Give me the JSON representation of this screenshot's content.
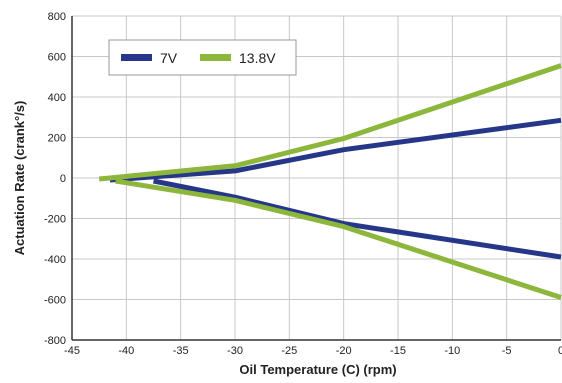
{
  "chart_data": {
    "type": "line",
    "title": "",
    "xlabel": "Oil Temperature (C) (rpm)",
    "ylabel": "Actuation Rate (crank°/s)",
    "xlim": [
      -45,
      0
    ],
    "ylim": [
      -800,
      800
    ],
    "x_ticks": [
      "-45",
      "-40",
      "-35",
      "-30",
      "-25",
      "-20",
      "-15",
      "-10",
      "-5",
      "0"
    ],
    "y_ticks": [
      "-800",
      "-600",
      "-400",
      "-200",
      "0",
      "200",
      "400",
      "600",
      "800"
    ],
    "grid": true,
    "legend_position": "top-left",
    "series": [
      {
        "name": "7V",
        "color": "#263689",
        "segments": [
          [
            [
              -41.5,
              -10
            ],
            [
              -30,
              35
            ],
            [
              -20,
              140
            ],
            [
              0,
              285
            ]
          ],
          [
            [
              -37.5,
              -15
            ],
            [
              -30,
              -95
            ],
            [
              -20,
              -225
            ],
            [
              0,
              -390
            ]
          ]
        ]
      },
      {
        "name": "13.8V",
        "color": "#8CB63C",
        "segments": [
          [
            [
              -42.5,
              -5
            ],
            [
              -30,
              60
            ],
            [
              -20,
              195
            ],
            [
              0,
              555
            ]
          ],
          [
            [
              -41,
              -15
            ],
            [
              -30,
              -110
            ],
            [
              -20,
              -240
            ],
            [
              0,
              -590
            ]
          ]
        ]
      }
    ]
  }
}
